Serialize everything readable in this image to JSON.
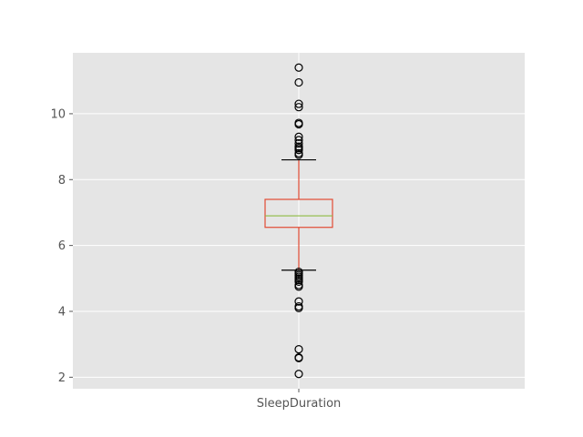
{
  "chart_data": {
    "type": "box",
    "title": "",
    "xlabel": "",
    "ylabel": "",
    "categories": [
      "SleepDuration"
    ],
    "ylim": [
      1.65,
      11.85
    ],
    "yticks": [
      2,
      4,
      6,
      8,
      10
    ],
    "grid": true,
    "series": [
      {
        "category": "SleepDuration",
        "whisker_low": 5.25,
        "q1": 6.55,
        "median": 6.9,
        "q3": 7.4,
        "whisker_high": 8.6,
        "outliers": [
          11.4,
          10.95,
          10.3,
          10.2,
          9.72,
          9.68,
          9.3,
          9.2,
          9.1,
          9.0,
          8.95,
          8.9,
          8.8,
          8.75,
          5.2,
          5.15,
          5.1,
          5.05,
          5.0,
          4.95,
          4.9,
          4.8,
          4.75,
          4.3,
          4.15,
          4.1,
          2.85,
          2.6,
          2.58,
          2.1
        ]
      }
    ]
  },
  "colors": {
    "plot_background": "#e5e5e5",
    "grid": "#ffffff",
    "box": "#e24a33",
    "median": "#8eba42",
    "whisker": "#e24a33",
    "cap": "#000000",
    "outlier": "#000000"
  }
}
